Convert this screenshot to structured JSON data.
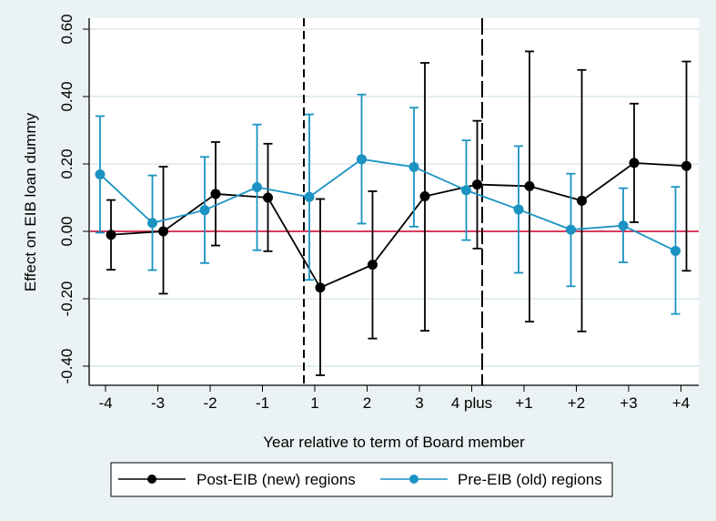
{
  "chart_data": {
    "type": "line",
    "title": "",
    "xlabel": "Year relative to term of Board member",
    "ylabel": "Effect on EIB loan dummy",
    "categories": [
      "-4",
      "-3",
      "-2",
      "-1",
      "1",
      "2",
      "3",
      "4 plus",
      "+1",
      "+2",
      "+3",
      "+4"
    ],
    "ylim": [
      -0.45,
      0.65
    ],
    "yticks": [
      -0.4,
      -0.2,
      0.0,
      0.2,
      0.4,
      0.6
    ],
    "ytick_labels": [
      "-0.40",
      "-0.20",
      "0.00",
      "0.20",
      "0.40",
      "0.60"
    ],
    "grid": true,
    "reference_line": 0,
    "vertical_dashed_lines_between": [
      [
        "-1",
        "1"
      ],
      [
        "4 plus",
        "+1"
      ]
    ],
    "legend_position": "bottom",
    "series": [
      {
        "name": "Post-EIB (new) regions",
        "color": "#000000",
        "values": [
          -0.01,
          0.0,
          0.111,
          0.1,
          -0.167,
          -0.099,
          0.104,
          0.139,
          0.134,
          0.091,
          0.203,
          0.194
        ],
        "upper": [
          0.093,
          0.192,
          0.265,
          0.26,
          0.096,
          0.119,
          0.5,
          0.328,
          0.534,
          0.479,
          0.379,
          0.504
        ],
        "lower": [
          -0.114,
          -0.185,
          -0.042,
          -0.059,
          -0.427,
          -0.318,
          -0.295,
          -0.051,
          -0.268,
          -0.297,
          0.027,
          -0.117
        ]
      },
      {
        "name": "Pre-EIB (old) regions",
        "color": "#1a93c2",
        "values": [
          0.169,
          0.025,
          0.063,
          0.131,
          0.102,
          0.214,
          0.191,
          0.122,
          0.065,
          0.005,
          0.017,
          -0.058
        ],
        "upper": [
          0.342,
          0.166,
          0.221,
          0.317,
          0.347,
          0.406,
          0.367,
          0.27,
          0.253,
          0.171,
          0.128,
          0.132
        ],
        "lower": [
          -0.004,
          -0.115,
          -0.094,
          -0.056,
          -0.144,
          0.023,
          0.014,
          -0.026,
          -0.123,
          -0.163,
          -0.092,
          -0.245
        ]
      }
    ],
    "zero_line_color": "#d0204a"
  }
}
